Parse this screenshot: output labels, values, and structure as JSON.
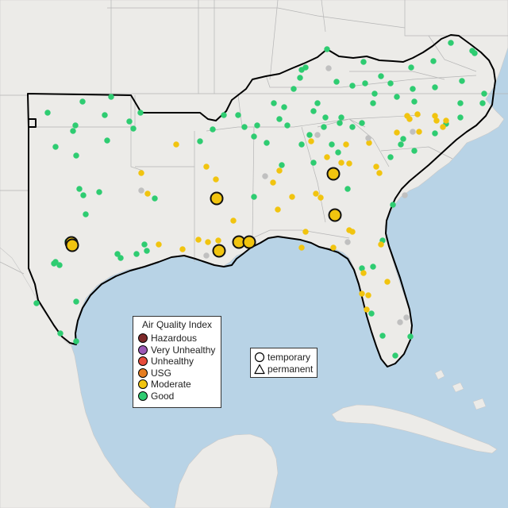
{
  "legend": {
    "title": "Air Quality Index",
    "categories": [
      {
        "label": "Hazardous",
        "color": "#7e2a2a"
      },
      {
        "label": "Very Unhealthy",
        "color": "#9b59b6"
      },
      {
        "label": "Unhealthy",
        "color": "#e74c3c"
      },
      {
        "label": "USG",
        "color": "#e67e22"
      },
      {
        "label": "Moderate",
        "color": "#f1c40f"
      },
      {
        "label": "Good",
        "color": "#2ecc71"
      }
    ]
  },
  "monitor_types": {
    "temporary": "temporary",
    "permanent": "permanent"
  },
  "colors": {
    "water": "#b8d3e6",
    "land": "#ecebe8",
    "border": "#000000",
    "no_data": "#c0c0c0"
  }
}
